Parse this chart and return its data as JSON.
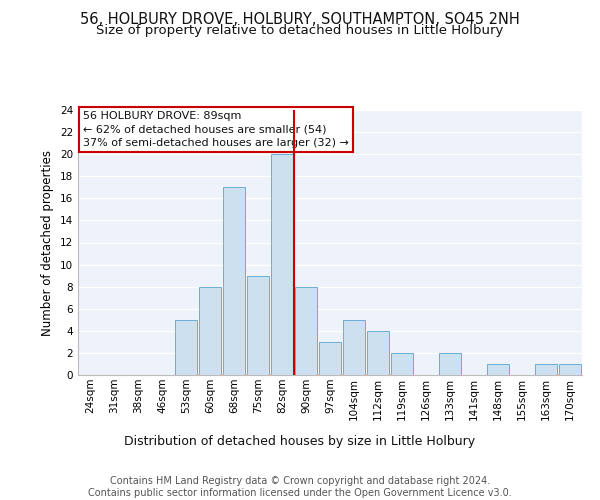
{
  "title": "56, HOLBURY DROVE, HOLBURY, SOUTHAMPTON, SO45 2NH",
  "subtitle": "Size of property relative to detached houses in Little Holbury",
  "xlabel": "Distribution of detached houses by size in Little Holbury",
  "ylabel": "Number of detached properties",
  "categories": [
    "24sqm",
    "31sqm",
    "38sqm",
    "46sqm",
    "53sqm",
    "60sqm",
    "68sqm",
    "75sqm",
    "82sqm",
    "90sqm",
    "97sqm",
    "104sqm",
    "112sqm",
    "119sqm",
    "126sqm",
    "133sqm",
    "141sqm",
    "148sqm",
    "155sqm",
    "163sqm",
    "170sqm"
  ],
  "values": [
    0,
    0,
    0,
    0,
    5,
    8,
    17,
    9,
    20,
    8,
    3,
    5,
    4,
    2,
    0,
    2,
    0,
    1,
    0,
    1,
    1
  ],
  "bar_color": "#cce0f0",
  "bar_edge_color": "#6aaed6",
  "vline_x": 8.5,
  "vline_color": "#cc0000",
  "annotation_text": "56 HOLBURY DROVE: 89sqm\n← 62% of detached houses are smaller (54)\n37% of semi-detached houses are larger (32) →",
  "annotation_box_color": "#cc0000",
  "ylim": [
    0,
    24
  ],
  "yticks": [
    0,
    2,
    4,
    6,
    8,
    10,
    12,
    14,
    16,
    18,
    20,
    22,
    24
  ],
  "background_color": "#eef2fa",
  "footer": "Contains HM Land Registry data © Crown copyright and database right 2024.\nContains public sector information licensed under the Open Government Licence v3.0.",
  "title_fontsize": 10.5,
  "subtitle_fontsize": 9.5,
  "xlabel_fontsize": 9,
  "ylabel_fontsize": 8.5,
  "tick_fontsize": 7.5,
  "annotation_fontsize": 8,
  "footer_fontsize": 7
}
